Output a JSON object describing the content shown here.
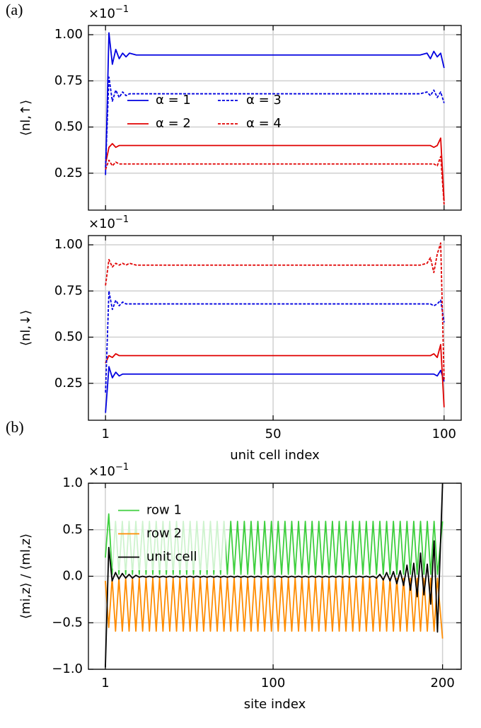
{
  "panel_labels": {
    "a": "(a)",
    "b": "(b)"
  },
  "chart_data": [
    {
      "type": "line",
      "ylabel": "⟨nl,↑⟩",
      "offset_base": "×10",
      "offset_exponent": "−1",
      "xlim": [
        -4,
        105
      ],
      "xticks": [
        1,
        50,
        100
      ],
      "xticklabels": false,
      "ylim": [
        0.05,
        1.05
      ],
      "yticks": [
        {
          "value": 0.25,
          "label": "0.25"
        },
        {
          "value": 0.5,
          "label": "0.50"
        },
        {
          "value": 0.75,
          "label": "0.75"
        },
        {
          "value": 1.0,
          "label": "1.00"
        }
      ],
      "grid": true,
      "legend": "center left",
      "legend_columns": 2,
      "x": [
        1,
        2,
        3,
        4,
        5,
        6,
        7,
        8,
        10,
        20,
        30,
        40,
        50,
        60,
        70,
        80,
        90,
        93,
        95,
        96,
        97,
        98,
        99,
        100
      ],
      "series": [
        {
          "name": "α = 1",
          "color": "#0000e0",
          "dash": "solid",
          "values": [
            0.24,
            1.01,
            0.84,
            0.92,
            0.87,
            0.9,
            0.88,
            0.9,
            0.89,
            0.89,
            0.89,
            0.89,
            0.89,
            0.89,
            0.89,
            0.89,
            0.89,
            0.89,
            0.9,
            0.87,
            0.91,
            0.88,
            0.9,
            0.82
          ]
        },
        {
          "name": "α = 2",
          "color": "#e00000",
          "dash": "solid",
          "values": [
            0.3,
            0.39,
            0.41,
            0.39,
            0.4,
            0.4,
            0.4,
            0.4,
            0.4,
            0.4,
            0.4,
            0.4,
            0.4,
            0.4,
            0.4,
            0.4,
            0.4,
            0.4,
            0.4,
            0.4,
            0.39,
            0.4,
            0.44,
            0.1
          ]
        },
        {
          "name": "α = 3",
          "color": "#0000e0",
          "dash": "dashed",
          "values": [
            0.28,
            0.77,
            0.64,
            0.7,
            0.66,
            0.69,
            0.67,
            0.68,
            0.68,
            0.68,
            0.68,
            0.68,
            0.68,
            0.68,
            0.68,
            0.68,
            0.68,
            0.68,
            0.69,
            0.67,
            0.7,
            0.66,
            0.69,
            0.63
          ]
        },
        {
          "name": "α = 4",
          "color": "#e00000",
          "dash": "dashed",
          "values": [
            0.27,
            0.32,
            0.29,
            0.31,
            0.3,
            0.3,
            0.3,
            0.3,
            0.3,
            0.3,
            0.3,
            0.3,
            0.3,
            0.3,
            0.3,
            0.3,
            0.3,
            0.3,
            0.3,
            0.3,
            0.3,
            0.29,
            0.34,
            0.08
          ]
        }
      ]
    },
    {
      "type": "line",
      "ylabel": "⟨nl,↓⟩",
      "offset_base": "×10",
      "offset_exponent": "−1",
      "xlabel": "unit cell index",
      "xlim": [
        -4,
        105
      ],
      "xticks": [
        1,
        50,
        100
      ],
      "ylim": [
        0.05,
        1.05
      ],
      "yticks": [
        {
          "value": 0.25,
          "label": "0.25"
        },
        {
          "value": 0.5,
          "label": "0.50"
        },
        {
          "value": 0.75,
          "label": "0.75"
        },
        {
          "value": 1.0,
          "label": "1.00"
        }
      ],
      "grid": true,
      "x": [
        1,
        2,
        3,
        4,
        5,
        6,
        7,
        8,
        10,
        20,
        30,
        40,
        50,
        60,
        70,
        80,
        90,
        93,
        95,
        96,
        97,
        98,
        99,
        100
      ],
      "series": [
        {
          "color": "#0000e0",
          "dash": "solid",
          "values": [
            0.09,
            0.34,
            0.28,
            0.31,
            0.29,
            0.3,
            0.3,
            0.3,
            0.3,
            0.3,
            0.3,
            0.3,
            0.3,
            0.3,
            0.3,
            0.3,
            0.3,
            0.3,
            0.3,
            0.3,
            0.3,
            0.29,
            0.32,
            0.26
          ]
        },
        {
          "color": "#e00000",
          "dash": "solid",
          "values": [
            0.36,
            0.4,
            0.39,
            0.41,
            0.4,
            0.4,
            0.4,
            0.4,
            0.4,
            0.4,
            0.4,
            0.4,
            0.4,
            0.4,
            0.4,
            0.4,
            0.4,
            0.4,
            0.4,
            0.4,
            0.41,
            0.39,
            0.46,
            0.12
          ]
        },
        {
          "color": "#0000e0",
          "dash": "dashed",
          "values": [
            0.2,
            0.75,
            0.65,
            0.7,
            0.67,
            0.69,
            0.68,
            0.68,
            0.68,
            0.68,
            0.68,
            0.68,
            0.68,
            0.68,
            0.68,
            0.68,
            0.68,
            0.68,
            0.68,
            0.68,
            0.67,
            0.68,
            0.7,
            0.58
          ]
        },
        {
          "color": "#e00000",
          "dash": "dashed",
          "values": [
            0.78,
            0.92,
            0.88,
            0.9,
            0.89,
            0.9,
            0.89,
            0.9,
            0.89,
            0.89,
            0.89,
            0.89,
            0.89,
            0.89,
            0.89,
            0.89,
            0.89,
            0.89,
            0.9,
            0.93,
            0.85,
            0.95,
            1.01,
            0.27
          ]
        }
      ]
    },
    {
      "type": "line",
      "ylabel": "⟨mi,z⟩ / ⟨ml,z⟩",
      "offset_base": "×10",
      "offset_exponent": "−1",
      "xlabel": "site index",
      "xlim": [
        -9,
        211
      ],
      "xticks": [
        1,
        100,
        200
      ],
      "ylim": [
        -1.0,
        1.0
      ],
      "yticks": [
        {
          "value": -1.0,
          "label": "−1.0"
        },
        {
          "value": -0.5,
          "label": "−0.5"
        },
        {
          "value": 0.0,
          "label": "0.0"
        },
        {
          "value": 0.5,
          "label": "0.5"
        },
        {
          "value": 1.0,
          "label": "1.0"
        }
      ],
      "grid": true,
      "legend": "upper left",
      "legend_columns": 1,
      "x": [
        1,
        3,
        5,
        7,
        9,
        11,
        13,
        15,
        17,
        19,
        21,
        23,
        25,
        27,
        29,
        31,
        33,
        35,
        37,
        39,
        41,
        43,
        45,
        47,
        49,
        51,
        53,
        55,
        57,
        59,
        61,
        63,
        65,
        67,
        69,
        71,
        73,
        75,
        77,
        79,
        81,
        83,
        85,
        87,
        89,
        91,
        93,
        95,
        97,
        99,
        101,
        103,
        105,
        107,
        109,
        111,
        113,
        115,
        117,
        119,
        121,
        123,
        125,
        127,
        129,
        131,
        133,
        135,
        137,
        139,
        141,
        143,
        145,
        147,
        149,
        151,
        153,
        155,
        157,
        159,
        161,
        163,
        165,
        167,
        169,
        171,
        173,
        175,
        177,
        179,
        181,
        183,
        185,
        187,
        189,
        191,
        193,
        195,
        197,
        200
      ],
      "series": [
        {
          "name": "row 1",
          "color": "#3ecf3e",
          "dash": "solid",
          "values": [
            0.2,
            0.67,
            0.02,
            0.59,
            0.02,
            0.59,
            0.02,
            0.59,
            0.02,
            0.59,
            0.02,
            0.59,
            0.02,
            0.59,
            0.02,
            0.59,
            0.02,
            0.59,
            0.02,
            0.59,
            0.02,
            0.59,
            0.02,
            0.59,
            0.02,
            0.59,
            0.02,
            0.59,
            0.02,
            0.59,
            0.02,
            0.59,
            0.02,
            0.59,
            0.02,
            0.59,
            0.02,
            0.59,
            0.02,
            0.59,
            0.02,
            0.59,
            0.02,
            0.59,
            0.02,
            0.59,
            0.02,
            0.59,
            0.02,
            0.59,
            0.02,
            0.59,
            0.02,
            0.59,
            0.02,
            0.59,
            0.02,
            0.59,
            0.02,
            0.59,
            0.02,
            0.59,
            0.02,
            0.59,
            0.02,
            0.59,
            0.02,
            0.59,
            0.02,
            0.59,
            0.02,
            0.59,
            0.02,
            0.59,
            0.02,
            0.59,
            0.02,
            0.59,
            0.02,
            0.59,
            0.02,
            0.59,
            0.02,
            0.59,
            0.02,
            0.59,
            0.02,
            0.59,
            0.02,
            0.59,
            0.02,
            0.59,
            0.02,
            0.59,
            0.02,
            0.59,
            0.02,
            0.59,
            0.02,
            0.59
          ]
        },
        {
          "name": "row 2",
          "color": "#ff8c00",
          "dash": "solid",
          "values": [
            -0.05,
            -0.55,
            -0.02,
            -0.59,
            -0.02,
            -0.59,
            -0.02,
            -0.59,
            -0.02,
            -0.59,
            -0.02,
            -0.59,
            -0.02,
            -0.59,
            -0.02,
            -0.59,
            -0.02,
            -0.59,
            -0.02,
            -0.59,
            -0.02,
            -0.59,
            -0.02,
            -0.59,
            -0.02,
            -0.59,
            -0.02,
            -0.59,
            -0.02,
            -0.59,
            -0.02,
            -0.59,
            -0.02,
            -0.59,
            -0.02,
            -0.59,
            -0.02,
            -0.59,
            -0.02,
            -0.59,
            -0.02,
            -0.59,
            -0.02,
            -0.59,
            -0.02,
            -0.59,
            -0.02,
            -0.59,
            -0.02,
            -0.59,
            -0.02,
            -0.59,
            -0.02,
            -0.59,
            -0.02,
            -0.59,
            -0.02,
            -0.59,
            -0.02,
            -0.59,
            -0.02,
            -0.59,
            -0.02,
            -0.59,
            -0.02,
            -0.59,
            -0.02,
            -0.59,
            -0.02,
            -0.59,
            -0.02,
            -0.59,
            -0.02,
            -0.59,
            -0.02,
            -0.59,
            -0.02,
            -0.59,
            -0.02,
            -0.59,
            -0.02,
            -0.59,
            -0.02,
            -0.59,
            -0.02,
            -0.59,
            -0.02,
            -0.59,
            -0.02,
            -0.59,
            -0.02,
            -0.59,
            -0.02,
            -0.59,
            -0.02,
            -0.59,
            -0.02,
            -0.59,
            -0.02,
            -0.67
          ]
        },
        {
          "name": "unit cell",
          "color": "#000000",
          "dash": "solid",
          "values": [
            -0.98,
            0.31,
            -0.05,
            0.04,
            -0.03,
            0.03,
            -0.02,
            0.02,
            -0.02,
            0.01,
            -0.01,
            0,
            -0.01,
            0,
            -0.01,
            0,
            -0.01,
            0,
            -0.01,
            0,
            -0.01,
            0,
            -0.01,
            0,
            -0.01,
            0,
            -0.01,
            0,
            -0.01,
            0,
            -0.01,
            0,
            -0.01,
            0,
            -0.01,
            0,
            -0.01,
            0,
            -0.01,
            0,
            -0.01,
            0,
            -0.01,
            0,
            -0.01,
            0,
            -0.01,
            0,
            -0.01,
            0,
            -0.01,
            0,
            -0.01,
            0,
            -0.01,
            0,
            -0.01,
            0,
            -0.01,
            0,
            -0.01,
            0,
            -0.01,
            0,
            -0.01,
            0,
            -0.01,
            0,
            -0.01,
            0,
            -0.01,
            0,
            -0.01,
            0,
            -0.01,
            0,
            -0.01,
            0,
            -0.01,
            0,
            -0.02,
            0.02,
            -0.04,
            0.04,
            -0.05,
            0.05,
            -0.08,
            0.06,
            -0.1,
            0.12,
            -0.15,
            0.14,
            -0.22,
            0.25,
            -0.2,
            0.13,
            -0.3,
            0.38,
            -0.6,
            1.0
          ]
        }
      ]
    }
  ]
}
